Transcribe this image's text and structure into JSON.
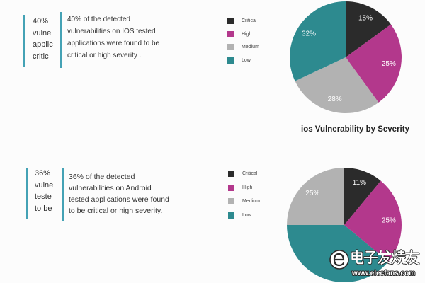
{
  "callouts": [
    {
      "clipped_lines": [
        "40%",
        "vulne",
        "applic",
        "critic"
      ],
      "text_lines": [
        "40% of the detected",
        "vulnerabilities on IOS tested",
        "applications were found to be",
        "critical or high severity ."
      ],
      "accent_color": "#44a2b5"
    },
    {
      "clipped_lines": [
        "36%",
        "vulne",
        "teste",
        "to be"
      ],
      "text_lines": [
        "36% of the detected",
        "vulnerabilities on Android",
        "tested applications were found",
        "to be critical or high severity."
      ],
      "accent_color": "#44a2b5"
    }
  ],
  "chart_data": [
    {
      "type": "pie",
      "title": "ios Vulnerability by Severity",
      "legend_position": "left",
      "categories": [
        "Critical",
        "High",
        "Medium",
        "Low"
      ],
      "values": [
        15,
        25,
        28,
        32
      ],
      "labels": [
        "15%",
        "25%",
        "28%",
        "32%"
      ],
      "colors": [
        "#2b2b2b",
        "#b3388c",
        "#b2b2b2",
        "#2d8a8f"
      ],
      "clockwise_order": [
        0,
        1,
        2,
        3
      ]
    },
    {
      "type": "pie",
      "legend_position": "left",
      "categories": [
        "Critical",
        "High",
        "Medium",
        "Low"
      ],
      "values": [
        11,
        25,
        25,
        39
      ],
      "labels": [
        "11%",
        "25%",
        "25%",
        null
      ],
      "colors": [
        "#2b2b2b",
        "#b3388c",
        "#b2b2b2",
        "#2d8a8f"
      ],
      "clockwise_order": [
        0,
        1,
        3,
        2
      ]
    }
  ],
  "watermark": {
    "brand_name": "电子发烧友",
    "url": "www.elecfans.com",
    "logo_icon": "elecfans-logo-icon"
  }
}
